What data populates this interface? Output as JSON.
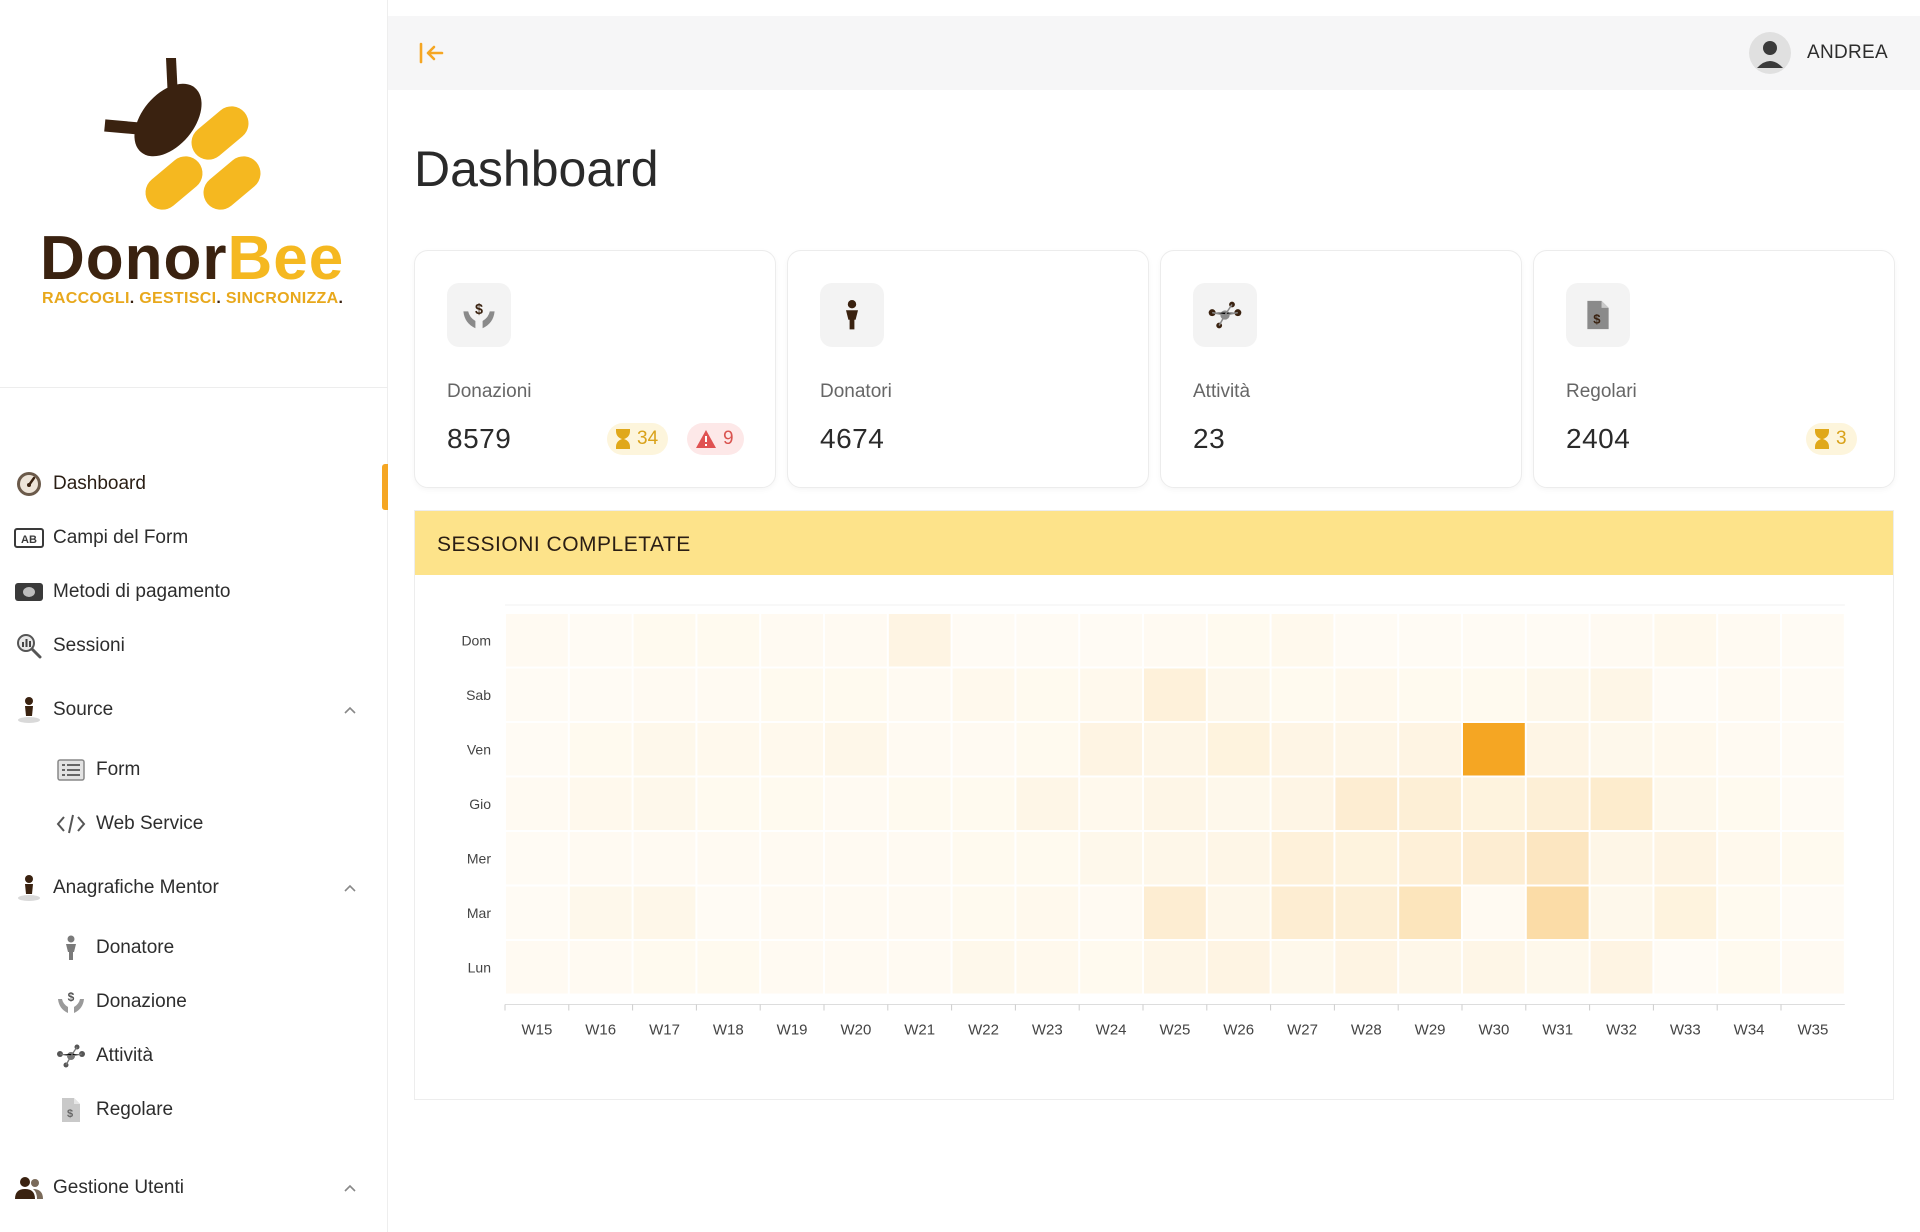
{
  "brand": {
    "name_part1": "Donor",
    "name_part2": "Bee",
    "tagline_1": "RACCOGLI",
    "tagline_2": "GESTISCI",
    "tagline_3": "SINCRONIZZA",
    "dot": ".",
    "primary_color": "#f5b820",
    "dark_color": "#3a2210"
  },
  "sidebar": {
    "items": [
      {
        "label": "Dashboard",
        "icon": "dashboard-gauge-icon",
        "active": true
      },
      {
        "label": "Campi del Form",
        "icon": "ab-field-icon"
      },
      {
        "label": "Metodi di pagamento",
        "icon": "banknote-icon"
      },
      {
        "label": "Sessioni",
        "icon": "sessions-chart-icon"
      },
      {
        "label": "Source",
        "icon": "source-person-icon",
        "expandable": true
      },
      {
        "label": "Form",
        "icon": "form-list-icon",
        "sub": true
      },
      {
        "label": "Web Service",
        "icon": "code-icon",
        "sub": true
      },
      {
        "label": "Anagrafiche Mentor",
        "icon": "mentor-person-icon",
        "expandable": true
      },
      {
        "label": "Donatore",
        "icon": "donor-person-icon",
        "sub": true
      },
      {
        "label": "Donazione",
        "icon": "donation-hands-icon",
        "sub": true
      },
      {
        "label": "Attività",
        "icon": "activity-network-icon",
        "sub": true
      },
      {
        "label": "Regolare",
        "icon": "regular-document-icon",
        "sub": true
      },
      {
        "label": "Gestione Utenti",
        "icon": "users-icon",
        "expandable": true
      }
    ]
  },
  "topbar": {
    "user_name": "ANDREA"
  },
  "page": {
    "title": "Dashboard"
  },
  "cards": [
    {
      "label": "Donazioni",
      "value": "8579",
      "pending": "34",
      "alerts": "9",
      "icon": "donation-hands-icon"
    },
    {
      "label": "Donatori",
      "value": "4674",
      "icon": "donor-person-icon"
    },
    {
      "label": "Attività",
      "value": "23",
      "icon": "activity-network-icon"
    },
    {
      "label": "Regolari",
      "value": "2404",
      "pending": "3",
      "icon": "regular-document-icon"
    }
  ],
  "panel": {
    "title": "SESSIONI COMPLETATE"
  },
  "chart_data": {
    "type": "heatmap",
    "title": "SESSIONI COMPLETATE",
    "x": [
      "W15",
      "W16",
      "W17",
      "W18",
      "W19",
      "W20",
      "W21",
      "W22",
      "W23",
      "W24",
      "W25",
      "W26",
      "W27",
      "W28",
      "W29",
      "W30",
      "W31",
      "W32",
      "W33",
      "W34",
      "W35"
    ],
    "y": [
      "Dom",
      "Sab",
      "Ven",
      "Gio",
      "Mer",
      "Mar",
      "Lun"
    ],
    "values": [
      [
        0.03,
        0.02,
        0.04,
        0.04,
        0.03,
        0.03,
        0.1,
        0.02,
        0.02,
        0.02,
        0.03,
        0.04,
        0.05,
        0.02,
        0.02,
        0.02,
        0.02,
        0.03,
        0.05,
        0.03,
        0.02
      ],
      [
        0.02,
        0.02,
        0.03,
        0.03,
        0.04,
        0.04,
        0.03,
        0.05,
        0.04,
        0.05,
        0.14,
        0.06,
        0.04,
        0.05,
        0.04,
        0.04,
        0.06,
        0.08,
        0.02,
        0.03,
        0.02
      ],
      [
        0.02,
        0.04,
        0.06,
        0.05,
        0.05,
        0.07,
        0.03,
        0.03,
        0.04,
        0.1,
        0.08,
        0.12,
        0.09,
        0.08,
        0.1,
        1.0,
        0.09,
        0.06,
        0.05,
        0.03,
        0.02
      ],
      [
        0.03,
        0.05,
        0.06,
        0.04,
        0.04,
        0.03,
        0.04,
        0.04,
        0.08,
        0.05,
        0.08,
        0.06,
        0.09,
        0.18,
        0.16,
        0.12,
        0.16,
        0.2,
        0.06,
        0.04,
        0.02
      ],
      [
        0.02,
        0.03,
        0.03,
        0.03,
        0.03,
        0.03,
        0.03,
        0.04,
        0.04,
        0.06,
        0.07,
        0.08,
        0.14,
        0.12,
        0.15,
        0.18,
        0.26,
        0.08,
        0.1,
        0.05,
        0.04
      ],
      [
        0.02,
        0.06,
        0.07,
        0.02,
        0.03,
        0.03,
        0.03,
        0.04,
        0.05,
        0.03,
        0.18,
        0.07,
        0.18,
        0.16,
        0.28,
        0.03,
        0.38,
        0.06,
        0.12,
        0.04,
        0.02
      ],
      [
        0.03,
        0.03,
        0.04,
        0.04,
        0.03,
        0.03,
        0.03,
        0.06,
        0.05,
        0.04,
        0.08,
        0.1,
        0.06,
        0.1,
        0.07,
        0.08,
        0.06,
        0.1,
        0.02,
        0.04,
        0.03
      ]
    ],
    "colorscale": [
      "#fffdf8",
      "#f5a623"
    ],
    "grid": false
  }
}
